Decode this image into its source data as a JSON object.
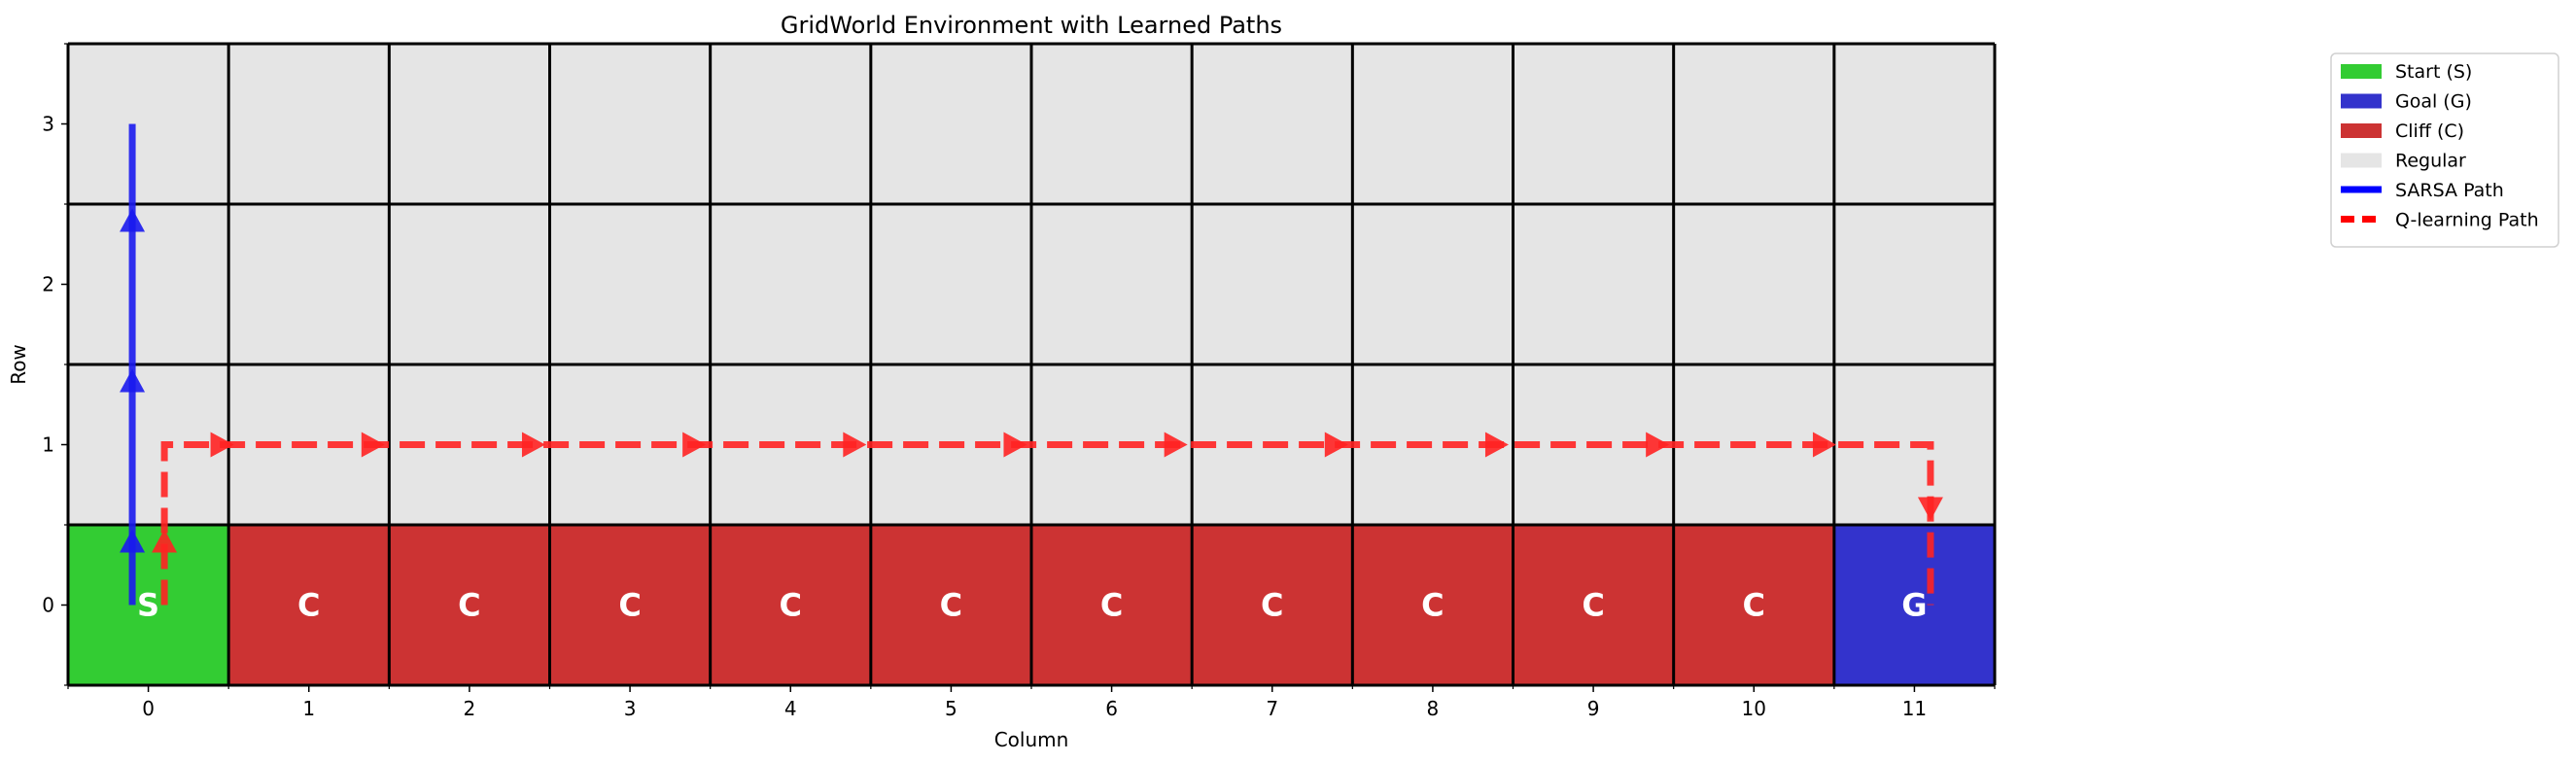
{
  "chart_data": {
    "type": "heatmap",
    "title": "GridWorld Environment with Learned Paths",
    "xlabel": "Column",
    "ylabel": "Row",
    "xlim": [
      -0.5,
      11.5
    ],
    "ylim": [
      -0.5,
      3.5
    ],
    "x_ticks": [
      0,
      1,
      2,
      3,
      4,
      5,
      6,
      7,
      8,
      9,
      10,
      11
    ],
    "y_ticks": [
      0,
      1,
      2,
      3
    ],
    "grid": true,
    "legend_position": "outside right, top",
    "cell_colors": {
      "start": "#33cc33",
      "goal": "#3333cc",
      "cliff": "#cc3333",
      "regular": "#e5e5e5"
    },
    "cells": [
      {
        "col": 0,
        "row": 0,
        "type": "start",
        "label": "S"
      },
      {
        "col": 1,
        "row": 0,
        "type": "cliff",
        "label": "C"
      },
      {
        "col": 2,
        "row": 0,
        "type": "cliff",
        "label": "C"
      },
      {
        "col": 3,
        "row": 0,
        "type": "cliff",
        "label": "C"
      },
      {
        "col": 4,
        "row": 0,
        "type": "cliff",
        "label": "C"
      },
      {
        "col": 5,
        "row": 0,
        "type": "cliff",
        "label": "C"
      },
      {
        "col": 6,
        "row": 0,
        "type": "cliff",
        "label": "C"
      },
      {
        "col": 7,
        "row": 0,
        "type": "cliff",
        "label": "C"
      },
      {
        "col": 8,
        "row": 0,
        "type": "cliff",
        "label": "C"
      },
      {
        "col": 9,
        "row": 0,
        "type": "cliff",
        "label": "C"
      },
      {
        "col": 10,
        "row": 0,
        "type": "cliff",
        "label": "C"
      },
      {
        "col": 11,
        "row": 0,
        "type": "goal",
        "label": "G"
      }
    ],
    "legend": [
      {
        "label": "Start (S)",
        "kind": "patch",
        "color": "#33cc33"
      },
      {
        "label": "Goal (G)",
        "kind": "patch",
        "color": "#3333cc"
      },
      {
        "label": "Cliff (C)",
        "kind": "patch",
        "color": "#cc3333"
      },
      {
        "label": "Regular",
        "kind": "patch",
        "color": "#e5e5e5"
      },
      {
        "label": "SARSA Path",
        "kind": "line",
        "color": "#0000ff",
        "dash": false
      },
      {
        "label": "Q-learning Path",
        "kind": "line",
        "color": "#ff0000",
        "dash": true
      }
    ],
    "series": [
      {
        "name": "SARSA Path",
        "color": "#1a1aee",
        "style": "solid",
        "points": [
          [
            -0.1,
            0
          ],
          [
            -0.1,
            1
          ],
          [
            -0.1,
            2
          ],
          [
            -0.1,
            3
          ]
        ]
      },
      {
        "name": "Q-learning Path",
        "color": "#ff2222",
        "style": "dashed",
        "points": [
          [
            0.1,
            0
          ],
          [
            0.1,
            1
          ],
          [
            1,
            1
          ],
          [
            2,
            1
          ],
          [
            3,
            1
          ],
          [
            4,
            1
          ],
          [
            5,
            1
          ],
          [
            6,
            1
          ],
          [
            7,
            1
          ],
          [
            8,
            1
          ],
          [
            9,
            1
          ],
          [
            10,
            1
          ],
          [
            11.1,
            1
          ],
          [
            11.1,
            0
          ]
        ]
      }
    ]
  }
}
